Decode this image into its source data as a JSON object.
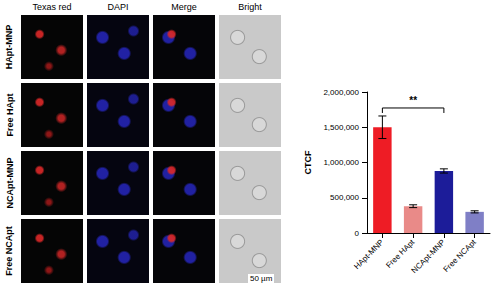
{
  "panels": {
    "columns": [
      "Texas red",
      "DAPI",
      "Merge",
      "Bright"
    ],
    "rows": [
      "HApt-MNP",
      "Free HApt",
      "NCApt-MNP",
      "Free NCApt"
    ],
    "scale_bar": "50 µm"
  },
  "chart_data": {
    "type": "bar",
    "y_label": "CTCF",
    "categories": [
      "HApt-MNP",
      "Free HApt",
      "NCApt-MNP",
      "Free NCApt"
    ],
    "values": [
      1500000,
      380000,
      880000,
      300000
    ],
    "errors": [
      160000,
      20000,
      30000,
      15000
    ],
    "colors": [
      "#ee1c25",
      "#e98a88",
      "#1c1c99",
      "#7f7fc6"
    ],
    "ylim": [
      0,
      2000000
    ],
    "yticks": [
      0,
      {
        "value": 500000,
        "label": "500,000"
      },
      {
        "value": 1000000,
        "label": "1,000,000"
      },
      {
        "value": 1500000,
        "label": "1,500,000"
      },
      {
        "value": 2000000,
        "label": "2,000,000"
      }
    ],
    "grid": false,
    "annotations": [
      {
        "text": "**",
        "from": "HApt-MNP",
        "to": "NCApt-MNP"
      }
    ]
  }
}
